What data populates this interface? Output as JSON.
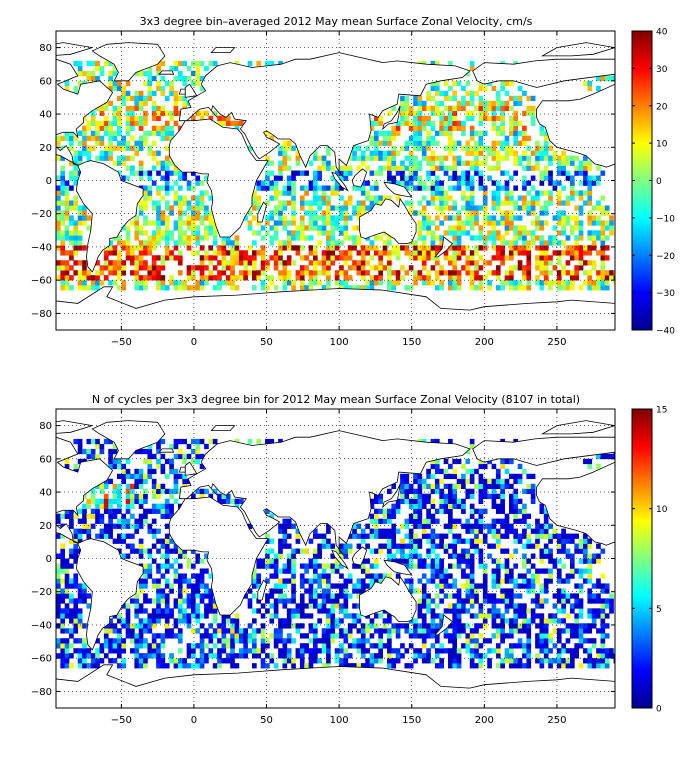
{
  "chart_data": [
    {
      "type": "heatmap",
      "title": "3x3 degree bin–averaged 2012 May mean Surface Zonal Velocity, cm/s",
      "xlim": [
        -95,
        290
      ],
      "ylim": [
        -90,
        90
      ],
      "x_ticks": [
        -50,
        0,
        50,
        100,
        150,
        200,
        250
      ],
      "y_ticks": [
        -80,
        -60,
        -40,
        -20,
        0,
        20,
        40,
        60,
        80
      ],
      "grid": true,
      "bin_size_deg": 3,
      "colorbar": {
        "min": -40,
        "max": 40,
        "ticks": [
          -40,
          -30,
          -20,
          -10,
          0,
          10,
          20,
          30,
          40
        ],
        "colormap": "jet",
        "placement": "right"
      }
    },
    {
      "type": "heatmap",
      "title": "N of cycles per 3x3 degree bin for 2012 May mean Surface Zonal Velocity (8107 in total)",
      "xlim": [
        -95,
        290
      ],
      "ylim": [
        -90,
        90
      ],
      "x_ticks": [
        -50,
        0,
        50,
        100,
        150,
        200,
        250
      ],
      "y_ticks": [
        -80,
        -60,
        -40,
        -20,
        0,
        20,
        40,
        60,
        80
      ],
      "grid": true,
      "bin_size_deg": 3,
      "colorbar": {
        "min": 0,
        "max": 15,
        "ticks": [
          0,
          5,
          10,
          15
        ],
        "colormap": "jet",
        "placement": "right"
      }
    }
  ]
}
